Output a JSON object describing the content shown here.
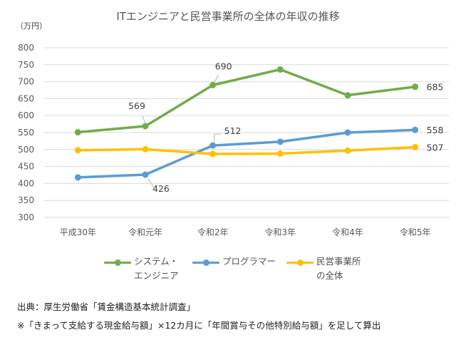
{
  "chart_data": {
    "type": "line",
    "title": "ITエンジニアと民営事業所の全体の年収の推移",
    "ylabel": "（万円）",
    "xlabel": "",
    "ylim": [
      300,
      800
    ],
    "yticks": [
      300,
      350,
      400,
      450,
      500,
      550,
      600,
      650,
      700,
      750,
      800
    ],
    "ytick_labels": [
      "300",
      "350",
      "400",
      "450",
      "500",
      "550",
      "600",
      "650",
      "700",
      "750",
      "800"
    ],
    "grid": true,
    "legend_position": "bottom",
    "categories": [
      "平成30年",
      "令和元年",
      "令和2年",
      "令和3年",
      "令和4年",
      "令和5年"
    ],
    "series": [
      {
        "name": "システム・\nエンジニア",
        "color": "#70AD47",
        "values": [
          551,
          569,
          690,
          736,
          660,
          685
        ],
        "data_labels": [
          null,
          "569",
          "690",
          null,
          null,
          "685"
        ]
      },
      {
        "name": "プログラマー",
        "color": "#5B9BD5",
        "values": [
          418,
          426,
          512,
          523,
          550,
          558
        ],
        "data_labels": [
          null,
          "426",
          "512",
          null,
          null,
          "558"
        ]
      },
      {
        "name": "民営事業所\nの全体",
        "color": "#FFC000",
        "values": [
          498,
          501,
          487,
          488,
          497,
          507
        ],
        "data_labels": [
          null,
          null,
          null,
          null,
          null,
          "507"
        ]
      }
    ]
  },
  "footnotes": {
    "source": "出典：厚生労働省「賃金構造基本統計調査」",
    "note": "※「きまって支給する現金給与額」×12カ月に「年間賞与その他特別給与額」を足して算出"
  }
}
